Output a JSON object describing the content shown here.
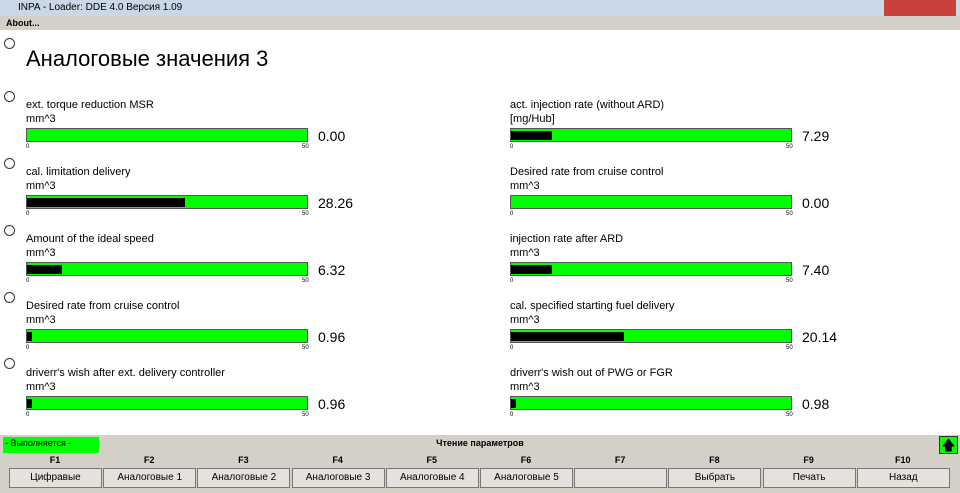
{
  "window": {
    "title": "INPA - Loader:  DDE 4.0 Версия 1.09",
    "menu": [
      "About..."
    ]
  },
  "screen": {
    "title": "Аналоговые значения 3",
    "gauges": [
      {
        "label": "ext. torque reduction MSR",
        "unit": "mm^3",
        "min": 0,
        "max": 50,
        "value": 0,
        "value_label": "0.00"
      },
      {
        "label": "cal. limitation delivery",
        "unit": "mm^3",
        "min": 0,
        "max": 50,
        "value": 28.26
      },
      {
        "label": "Amount of the ideal speed",
        "unit": "mm^3",
        "min": 0,
        "max": 50,
        "value": 6.32
      },
      {
        "label": "Desired rate from cruise control",
        "unit": "mm^3",
        "min": 0,
        "max": 50,
        "value": 0.96
      },
      {
        "label": "driverr's wish after ext. delivery controller",
        "unit": "mm^3",
        "min": 0,
        "max": 50,
        "value": 0.96
      },
      {
        "label": "act. injection rate (without ARD)",
        "unit": "[mg/Hub]",
        "min": 0,
        "max": 50,
        "value": 7.29
      },
      {
        "label": "Desired rate from cruise control",
        "unit": "mm^3",
        "min": 0,
        "max": 50,
        "value": 0,
        "value_label": "0.00"
      },
      {
        "label": "injection rate after ARD",
        "unit": "mm^3",
        "min": 0,
        "max": 50,
        "value": 7.4,
        "value_label": "7.40"
      },
      {
        "label": "cal. specified starting fuel delivery",
        "unit": "mm^3",
        "min": 0,
        "max": 50,
        "value": 20.14
      },
      {
        "label": "driverr's wish out of PWG or FGR",
        "unit": "mm^3",
        "min": 0,
        "max": 50,
        "value": 0.98
      }
    ]
  },
  "status": {
    "state": "- Выполняется -",
    "message": "Чтение параметров"
  },
  "function_keys": [
    {
      "key": "F1",
      "label": "Цифравые"
    },
    {
      "key": "F2",
      "label": "Аналоговые 1"
    },
    {
      "key": "F3",
      "label": "Аналоговые 2"
    },
    {
      "key": "F4",
      "label": "Аналоговые 3"
    },
    {
      "key": "F5",
      "label": "Аналоговые 4"
    },
    {
      "key": "F6",
      "label": "Аналоговые 5"
    },
    {
      "key": "F7"
    },
    {
      "key": "F8",
      "label": "Выбрать"
    },
    {
      "key": "F9",
      "label": "Печать"
    },
    {
      "key": "F10",
      "label": "Назад"
    }
  ]
}
